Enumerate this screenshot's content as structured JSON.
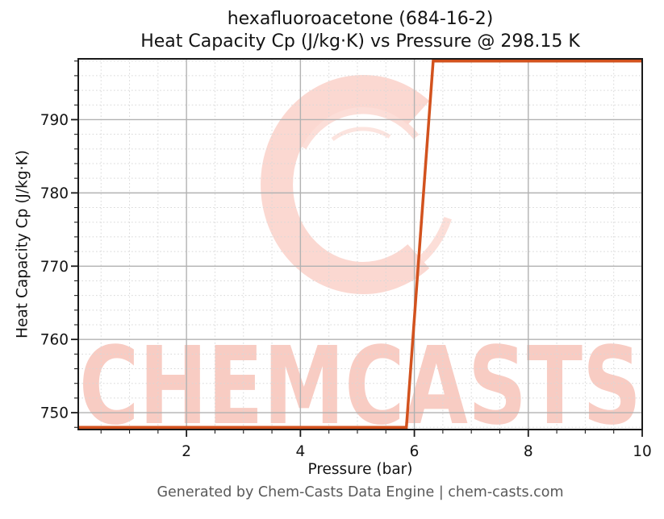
{
  "page": {
    "footer_text": "Generated by Chem-Casts Data Engine | chem-casts.com"
  },
  "watermark": {
    "text": "CHEMCASTS",
    "logo": "chemcasts-c-swirl-logo",
    "text_color": "#f8ccc3",
    "logo_color": "#fbd8d1"
  },
  "chart_data": {
    "type": "line",
    "title_line1": "hexafluoroacetone (684-16-2)",
    "title_line2": "Heat Capacity Cp (J/kg·K) vs Pressure @ 298.15 K",
    "compound_name": "hexafluoroacetone",
    "cas_number": "684-16-2",
    "temperature_K": 298.15,
    "xlabel": "Pressure (bar)",
    "ylabel": "Heat Capacity Cp (J/kg·K)",
    "xlim": [
      0.1,
      10
    ],
    "ylim": [
      747.7,
      798.3
    ],
    "x_major_ticks": [
      2,
      4,
      6,
      8,
      10
    ],
    "x_tick_labels": [
      "2",
      "4",
      "6",
      "8",
      "10"
    ],
    "x_minor_tick_step": 0.5,
    "y_major_ticks": [
      750,
      760,
      770,
      780,
      790
    ],
    "y_tick_labels": [
      "750",
      "760",
      "770",
      "780",
      "790"
    ],
    "y_minor_tick_step": 2,
    "grid": true,
    "legend_position": "none",
    "line_color": "#d2521e",
    "series": [
      {
        "name": "Heat Capacity Cp",
        "x": [
          0.1,
          5.86,
          6.33,
          10.0
        ],
        "y": [
          748.0,
          748.0,
          798.0,
          798.0
        ],
        "note": "flat at ~748 J/kg·K up to ~5.9 bar, steep rise (phase transition) to ~798 J/kg·K at ~6.3 bar, flat to 10 bar"
      }
    ]
  }
}
